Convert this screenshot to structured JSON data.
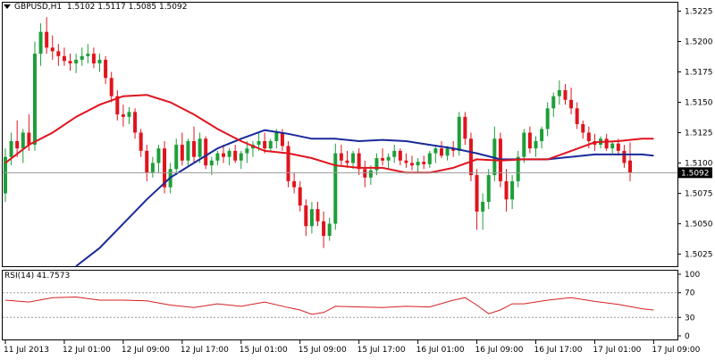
{
  "header": {
    "symbol": "GBPUSD,H1",
    "ohlc": "1.5102 1.5117 1.5085 1.5092"
  },
  "rsi_header": "RSI(14) 41.7573",
  "current_price_label": "1.5092",
  "colors": {
    "bull": "#1e9e3a",
    "bear": "#e0141e",
    "ma_fast": "#e0141e",
    "ma_slow": "#1a2a9a",
    "rsi_line": "#d42020",
    "grid_level": "#999999"
  },
  "chart_data": [
    {
      "type": "candlestick",
      "title": "GBPUSD,H1",
      "ylim": [
        1.5015,
        1.5232
      ],
      "y_ticks": [
        "1.5225",
        "1.5200",
        "1.5175",
        "1.5150",
        "1.5125",
        "1.5100",
        "1.5075",
        "1.5050",
        "1.5025"
      ],
      "y_tick_values": [
        1.5225,
        1.52,
        1.5175,
        1.515,
        1.5125,
        1.51,
        1.5075,
        1.505,
        1.5025
      ],
      "x_labels": [
        "11 Jul 2013",
        "12 Jul 01:00",
        "12 Jul 09:00",
        "12 Jul 17:00",
        "15 Jul 01:00",
        "15 Jul 09:00",
        "15 Jul 17:00",
        "16 Jul 01:00",
        "16 Jul 09:00",
        "16 Jul 17:00",
        "17 Jul 01:00",
        "17 Jul 09:00"
      ],
      "x_label_index": [
        0,
        10,
        20,
        30,
        40,
        50,
        60,
        70,
        80,
        90,
        100,
        110
      ],
      "current_price": 1.5092,
      "candles": [
        [
          1.5075,
          1.5112,
          1.5068,
          1.5105
        ],
        [
          1.5105,
          1.5125,
          1.5098,
          1.5118
        ],
        [
          1.5118,
          1.5135,
          1.5105,
          1.5112
        ],
        [
          1.5112,
          1.5128,
          1.51,
          1.5125
        ],
        [
          1.5125,
          1.514,
          1.511,
          1.5115
        ],
        [
          1.5115,
          1.52,
          1.511,
          1.519
        ],
        [
          1.519,
          1.5215,
          1.518,
          1.5208
        ],
        [
          1.5208,
          1.522,
          1.519,
          1.5195
        ],
        [
          1.5195,
          1.5205,
          1.5185,
          1.5192
        ],
        [
          1.5192,
          1.5198,
          1.518,
          1.5188
        ],
        [
          1.5188,
          1.5195,
          1.518,
          1.5184
        ],
        [
          1.5184,
          1.519,
          1.5176,
          1.5182
        ],
        [
          1.5182,
          1.519,
          1.5174,
          1.5185
        ],
        [
          1.5185,
          1.5195,
          1.518,
          1.5188
        ],
        [
          1.5188,
          1.5198,
          1.5182,
          1.519
        ],
        [
          1.519,
          1.5195,
          1.5178,
          1.5182
        ],
        [
          1.5182,
          1.519,
          1.5175,
          1.5185
        ],
        [
          1.5185,
          1.5188,
          1.5165,
          1.517
        ],
        [
          1.517,
          1.5175,
          1.515,
          1.5155
        ],
        [
          1.5155,
          1.516,
          1.5135,
          1.514
        ],
        [
          1.514,
          1.5148,
          1.513,
          1.5138
        ],
        [
          1.5138,
          1.5146,
          1.5132,
          1.5142
        ],
        [
          1.5142,
          1.5145,
          1.512,
          1.5125
        ],
        [
          1.5125,
          1.5128,
          1.5105,
          1.511
        ],
        [
          1.511,
          1.5115,
          1.5085,
          1.5092
        ],
        [
          1.5092,
          1.5105,
          1.5088,
          1.51
        ],
        [
          1.51,
          1.5115,
          1.5092,
          1.5112
        ],
        [
          1.5112,
          1.5118,
          1.5075,
          1.508
        ],
        [
          1.508,
          1.51,
          1.5075,
          1.5095
        ],
        [
          1.5095,
          1.512,
          1.509,
          1.5115
        ],
        [
          1.5115,
          1.5125,
          1.5098,
          1.5102
        ],
        [
          1.5102,
          1.512,
          1.5098,
          1.5118
        ],
        [
          1.5118,
          1.513,
          1.51,
          1.5105
        ],
        [
          1.5105,
          1.5125,
          1.51,
          1.512
        ],
        [
          1.512,
          1.5122,
          1.5095,
          1.5098
        ],
        [
          1.5098,
          1.5105,
          1.509,
          1.5102
        ],
        [
          1.5102,
          1.511,
          1.5098,
          1.5108
        ],
        [
          1.5108,
          1.5115,
          1.51,
          1.5105
        ],
        [
          1.5105,
          1.5112,
          1.5098,
          1.511
        ],
        [
          1.511,
          1.5115,
          1.51,
          1.5102
        ],
        [
          1.5102,
          1.511,
          1.5095,
          1.5108
        ],
        [
          1.5108,
          1.5118,
          1.51,
          1.5112
        ],
        [
          1.5112,
          1.5118,
          1.5105,
          1.5115
        ],
        [
          1.5115,
          1.5125,
          1.511,
          1.5118
        ],
        [
          1.5118,
          1.5125,
          1.5108,
          1.5112
        ],
        [
          1.5112,
          1.512,
          1.511,
          1.5118
        ],
        [
          1.5118,
          1.5128,
          1.5112,
          1.5125
        ],
        [
          1.5125,
          1.5128,
          1.511,
          1.5114
        ],
        [
          1.5114,
          1.5118,
          1.508,
          1.5085
        ],
        [
          1.5085,
          1.5092,
          1.5075,
          1.508
        ],
        [
          1.508,
          1.5085,
          1.506,
          1.5065
        ],
        [
          1.5065,
          1.507,
          1.504,
          1.5048
        ],
        [
          1.5048,
          1.5068,
          1.5042,
          1.5062
        ],
        [
          1.5062,
          1.5068,
          1.5048,
          1.5052
        ],
        [
          1.5052,
          1.506,
          1.503,
          1.504
        ],
        [
          1.504,
          1.5055,
          1.5036,
          1.505
        ],
        [
          1.505,
          1.5116,
          1.5045,
          1.5108
        ],
        [
          1.5108,
          1.5115,
          1.5098,
          1.5102
        ],
        [
          1.5102,
          1.511,
          1.5096,
          1.51
        ],
        [
          1.51,
          1.511,
          1.5095,
          1.5108
        ],
        [
          1.5108,
          1.5112,
          1.509,
          1.5095
        ],
        [
          1.5095,
          1.5102,
          1.508,
          1.5088
        ],
        [
          1.5088,
          1.5098,
          1.5082,
          1.5094
        ],
        [
          1.5094,
          1.5108,
          1.509,
          1.5104
        ],
        [
          1.5104,
          1.5112,
          1.5098,
          1.5102
        ],
        [
          1.5102,
          1.5108,
          1.5095,
          1.5105
        ],
        [
          1.5105,
          1.5115,
          1.51,
          1.511
        ],
        [
          1.511,
          1.5112,
          1.5098,
          1.5102
        ],
        [
          1.5102,
          1.5108,
          1.5096,
          1.51
        ],
        [
          1.51,
          1.5106,
          1.5094,
          1.5098
        ],
        [
          1.5098,
          1.5104,
          1.5092,
          1.5101
        ],
        [
          1.5101,
          1.5106,
          1.5095,
          1.5099
        ],
        [
          1.5099,
          1.511,
          1.5096,
          1.5108
        ],
        [
          1.5108,
          1.5115,
          1.51,
          1.5112
        ],
        [
          1.5112,
          1.5118,
          1.5104,
          1.5106
        ],
        [
          1.5106,
          1.5114,
          1.5102,
          1.5112
        ],
        [
          1.5112,
          1.5118,
          1.5105,
          1.511
        ],
        [
          1.511,
          1.5142,
          1.5106,
          1.5138
        ],
        [
          1.5138,
          1.5142,
          1.5115,
          1.512
        ],
        [
          1.512,
          1.5125,
          1.5085,
          1.509
        ],
        [
          1.509,
          1.5095,
          1.5045,
          1.506
        ],
        [
          1.506,
          1.5075,
          1.5045,
          1.5068
        ],
        [
          1.5068,
          1.5095,
          1.5062,
          1.509
        ],
        [
          1.509,
          1.513,
          1.5085,
          1.512
        ],
        [
          1.512,
          1.5125,
          1.508,
          1.5085
        ],
        [
          1.5085,
          1.5095,
          1.506,
          1.507
        ],
        [
          1.507,
          1.509,
          1.5062,
          1.5085
        ],
        [
          1.5085,
          1.511,
          1.508,
          1.5105
        ],
        [
          1.5105,
          1.5128,
          1.51,
          1.5125
        ],
        [
          1.5125,
          1.513,
          1.5108,
          1.5112
        ],
        [
          1.5112,
          1.5122,
          1.5105,
          1.5118
        ],
        [
          1.5118,
          1.513,
          1.5112,
          1.5128
        ],
        [
          1.5128,
          1.515,
          1.5122,
          1.5145
        ],
        [
          1.5145,
          1.5158,
          1.5138,
          1.5155
        ],
        [
          1.5155,
          1.5168,
          1.5148,
          1.516
        ],
        [
          1.516,
          1.5165,
          1.5148,
          1.5152
        ],
        [
          1.5152,
          1.5162,
          1.514,
          1.5145
        ],
        [
          1.5145,
          1.515,
          1.5128,
          1.5132
        ],
        [
          1.5132,
          1.5135,
          1.512,
          1.5125
        ],
        [
          1.5125,
          1.513,
          1.5112,
          1.5118
        ],
        [
          1.5118,
          1.5124,
          1.511,
          1.5115
        ],
        [
          1.5115,
          1.5122,
          1.5112,
          1.512
        ],
        [
          1.512,
          1.5124,
          1.511,
          1.5112
        ],
        [
          1.5112,
          1.5118,
          1.5108,
          1.5116
        ],
        [
          1.5116,
          1.512,
          1.5106,
          1.511
        ],
        [
          1.511,
          1.5115,
          1.5096,
          1.51
        ],
        [
          1.5102,
          1.5117,
          1.5085,
          1.5092
        ]
      ],
      "ma_fast": [
        [
          0,
          1.51
        ],
        [
          4,
          1.5115
        ],
        [
          8,
          1.5125
        ],
        [
          12,
          1.5138
        ],
        [
          16,
          1.5148
        ],
        [
          20,
          1.5155
        ],
        [
          24,
          1.5156
        ],
        [
          28,
          1.515
        ],
        [
          32,
          1.514
        ],
        [
          36,
          1.5128
        ],
        [
          40,
          1.5118
        ],
        [
          44,
          1.511
        ],
        [
          48,
          1.5108
        ],
        [
          52,
          1.5104
        ],
        [
          56,
          1.5098
        ],
        [
          60,
          1.5096
        ],
        [
          64,
          1.5096
        ],
        [
          68,
          1.5092
        ],
        [
          72,
          1.5092
        ],
        [
          76,
          1.5096
        ],
        [
          80,
          1.5103
        ],
        [
          84,
          1.5102
        ],
        [
          88,
          1.5103
        ],
        [
          92,
          1.5103
        ],
        [
          96,
          1.511
        ],
        [
          100,
          1.5117
        ],
        [
          104,
          1.5118
        ],
        [
          108,
          1.512
        ],
        [
          110,
          1.512
        ]
      ],
      "ma_slow": [
        [
          12,
          1.5015
        ],
        [
          16,
          1.503
        ],
        [
          20,
          1.505
        ],
        [
          24,
          1.507
        ],
        [
          28,
          1.5088
        ],
        [
          32,
          1.51
        ],
        [
          36,
          1.5112
        ],
        [
          40,
          1.512
        ],
        [
          44,
          1.5127
        ],
        [
          48,
          1.5124
        ],
        [
          52,
          1.512
        ],
        [
          56,
          1.512
        ],
        [
          60,
          1.5118
        ],
        [
          64,
          1.5119
        ],
        [
          68,
          1.5118
        ],
        [
          72,
          1.5115
        ],
        [
          76,
          1.5112
        ],
        [
          80,
          1.5108
        ],
        [
          84,
          1.5103
        ],
        [
          88,
          1.5103
        ],
        [
          92,
          1.5103
        ],
        [
          96,
          1.5105
        ],
        [
          100,
          1.5107
        ],
        [
          104,
          1.5107
        ],
        [
          108,
          1.5107
        ],
        [
          110,
          1.5106
        ]
      ]
    },
    {
      "type": "line",
      "title": "RSI(14) 41.7573",
      "ylim": [
        0,
        100
      ],
      "y_ticks": [
        "100",
        "70",
        "30",
        "0"
      ],
      "y_tick_values": [
        100,
        70,
        30,
        0
      ],
      "levels": [
        70,
        30
      ],
      "rsi": [
        [
          0,
          58
        ],
        [
          4,
          55
        ],
        [
          8,
          62
        ],
        [
          12,
          63
        ],
        [
          16,
          58
        ],
        [
          20,
          58
        ],
        [
          24,
          57
        ],
        [
          28,
          50
        ],
        [
          32,
          46
        ],
        [
          36,
          52
        ],
        [
          40,
          48
        ],
        [
          44,
          55
        ],
        [
          48,
          46
        ],
        [
          50,
          42
        ],
        [
          52,
          35
        ],
        [
          54,
          38
        ],
        [
          56,
          48
        ],
        [
          60,
          47
        ],
        [
          64,
          46
        ],
        [
          68,
          48
        ],
        [
          72,
          47
        ],
        [
          76,
          58
        ],
        [
          78,
          62
        ],
        [
          80,
          50
        ],
        [
          82,
          36
        ],
        [
          84,
          42
        ],
        [
          86,
          52
        ],
        [
          88,
          52
        ],
        [
          92,
          58
        ],
        [
          96,
          62
        ],
        [
          100,
          56
        ],
        [
          104,
          51
        ],
        [
          108,
          44
        ],
        [
          110,
          42
        ]
      ]
    }
  ]
}
